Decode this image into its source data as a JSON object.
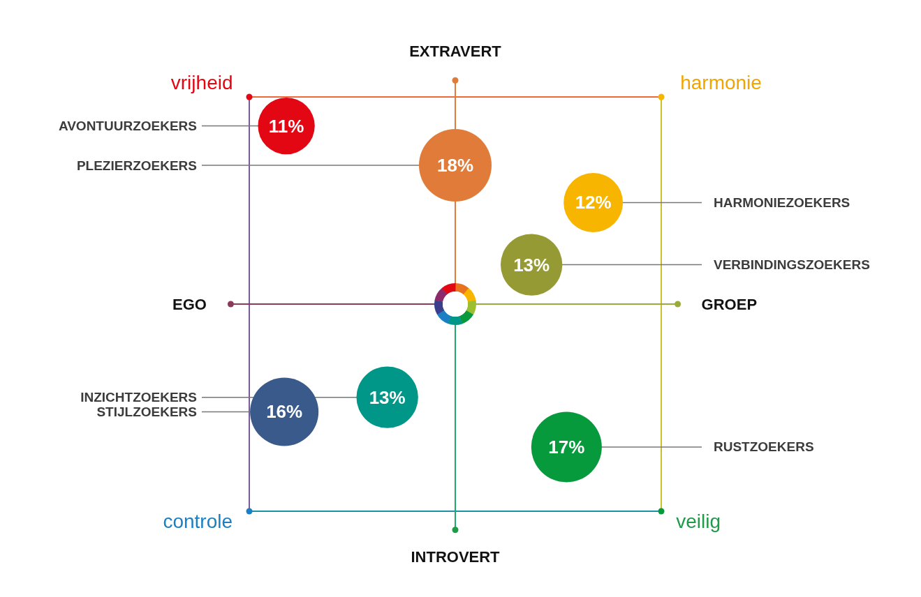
{
  "chart_data": {
    "type": "other",
    "value_labels": [
      "11%",
      "18%",
      "12%",
      "13%",
      "13%",
      "16%",
      "17%"
    ],
    "categories": [
      "AVONTUURZOEKERS",
      "PLEZIERZOEKERS",
      "HARMONIEZOEKERS",
      "VERBINDINGSZOEKERS",
      "INZICHTZOEKERS",
      "STIJLZOEKERS",
      "RUSTZOEKERS"
    ],
    "values": [
      11,
      18,
      12,
      13,
      13,
      16,
      17
    ],
    "colors": [
      "#e30613",
      "#e07b39",
      "#f7b500",
      "#969a34",
      "#009688",
      "#3a5a8c",
      "#079a3c"
    ],
    "annotations": [
      "EXTRAVERT",
      "INTROVERT",
      "EGO",
      "GROEP",
      "vrijheid",
      "harmonie",
      "controle",
      "veilig"
    ]
  }
}
